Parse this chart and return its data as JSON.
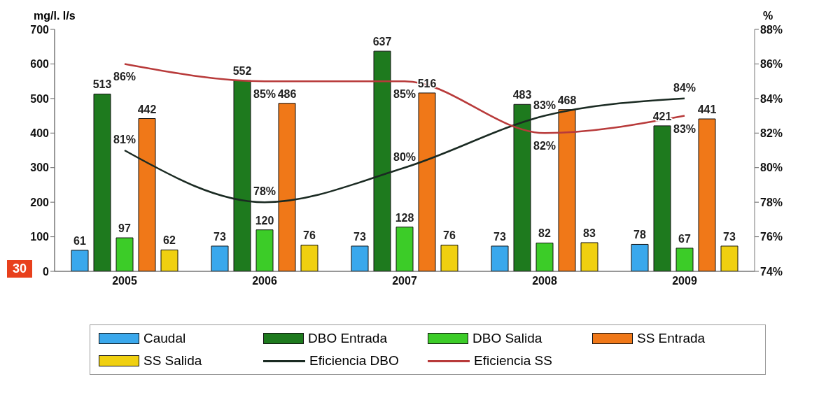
{
  "chart_data": {
    "type": "bar",
    "categories": [
      "2005",
      "2006",
      "2007",
      "2008",
      "2009"
    ],
    "ylabel": "mg/l. l/s",
    "y2label": "%",
    "ylim": [
      0,
      700
    ],
    "yticks": [
      0,
      100,
      200,
      300,
      400,
      500,
      600,
      700
    ],
    "y2lim": [
      74,
      88
    ],
    "y2ticks": [
      {
        "value": 74,
        "label": "74%"
      },
      {
        "value": 76,
        "label": "76%"
      },
      {
        "value": 78,
        "label": "78%"
      },
      {
        "value": 80,
        "label": "80%"
      },
      {
        "value": 82,
        "label": "82%"
      },
      {
        "value": 84,
        "label": "84%"
      },
      {
        "value": 86,
        "label": "86%"
      },
      {
        "value": 88,
        "label": "88%"
      }
    ],
    "series": [
      {
        "name": "Caudal",
        "color": "#3aa8ec",
        "values": [
          61,
          73,
          73,
          73,
          78
        ],
        "value_labels": [
          "61",
          "73",
          "73",
          "73",
          "78"
        ]
      },
      {
        "name": "DBO Entrada",
        "color": "#1e7a1e",
        "values": [
          513,
          552,
          637,
          483,
          421
        ],
        "value_labels": [
          "513",
          "552",
          "637",
          "483",
          "421"
        ]
      },
      {
        "name": "DBO Salida",
        "color": "#3ccc28",
        "values": [
          97,
          120,
          128,
          82,
          67
        ],
        "value_labels": [
          "97",
          "120",
          "128",
          "82",
          "67"
        ]
      },
      {
        "name": "SS Entrada",
        "color": "#f07818",
        "values": [
          442,
          486,
          516,
          468,
          441
        ],
        "value_labels": [
          "442",
          "486",
          "516",
          "468",
          "441"
        ]
      },
      {
        "name": "SS Salida",
        "color": "#f0d010",
        "values": [
          62,
          76,
          76,
          83,
          73
        ],
        "value_labels": [
          "62",
          "76",
          "76",
          "83",
          "73"
        ]
      },
      {
        "name": "Eficiencia DBO",
        "type": "line",
        "axis": "y2",
        "color": "#1a2a22",
        "values": [
          81,
          78,
          80,
          83,
          84
        ],
        "value_labels": [
          "81%",
          "78%",
          "80%",
          "83%",
          "84%"
        ]
      },
      {
        "name": "Eficiencia SS",
        "type": "line",
        "axis": "y2",
        "color": "#b83a3a",
        "values": [
          86,
          85,
          85,
          82,
          83
        ],
        "value_labels": [
          "86%",
          "85%",
          "85%",
          "82%",
          "83%"
        ]
      }
    ],
    "annotations": [
      "30"
    ],
    "legend": "bottom",
    "marker": "none"
  }
}
